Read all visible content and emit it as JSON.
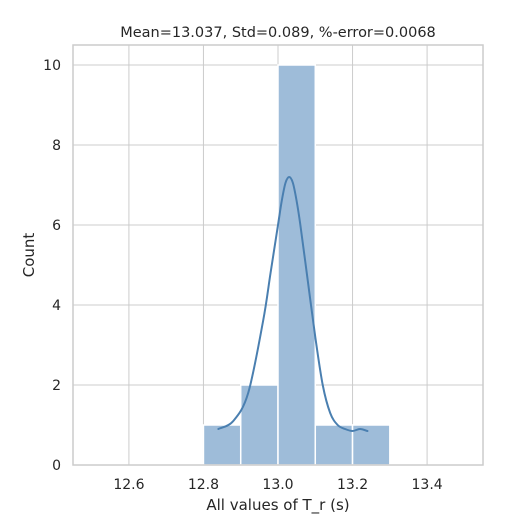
{
  "chart_data": {
    "type": "histogram",
    "title": "Mean=13.037, Std=0.089, %-error=0.0068",
    "xlabel": "All values of T_r (s)",
    "ylabel": "Count",
    "xlim": [
      12.45,
      13.55
    ],
    "ylim": [
      0,
      10.5
    ],
    "xticks": [
      12.6,
      12.8,
      13.0,
      13.2,
      13.4
    ],
    "yticks": [
      0,
      2,
      4,
      6,
      8,
      10
    ],
    "grid": true,
    "bins": [
      {
        "x0": 12.8,
        "x1": 12.9,
        "count": 1
      },
      {
        "x0": 12.9,
        "x1": 13.0,
        "count": 2
      },
      {
        "x0": 13.0,
        "x1": 13.1,
        "count": 10
      },
      {
        "x0": 13.1,
        "x1": 13.2,
        "count": 1
      },
      {
        "x0": 13.2,
        "x1": 13.3,
        "count": 1
      }
    ],
    "kde": {
      "x": [
        12.84,
        12.88,
        12.92,
        12.96,
        12.98,
        13.0,
        13.01,
        13.02,
        13.03,
        13.04,
        13.05,
        13.06,
        13.08,
        13.1,
        13.12,
        13.14,
        13.16,
        13.18,
        13.2,
        13.22,
        13.24
      ],
      "y": [
        0.9,
        1.1,
        1.8,
        3.6,
        4.8,
        6.0,
        6.6,
        7.05,
        7.2,
        7.05,
        6.6,
        6.0,
        4.6,
        3.2,
        2.0,
        1.3,
        1.0,
        0.9,
        0.85,
        0.9,
        0.85
      ]
    },
    "colors": {
      "bar_fill": "#9ebcd9",
      "bar_stroke": "#ffffff",
      "kde_line": "#4a7fb0",
      "grid": "#cccccc",
      "axis": "#cccccc",
      "text": "#262626"
    }
  }
}
